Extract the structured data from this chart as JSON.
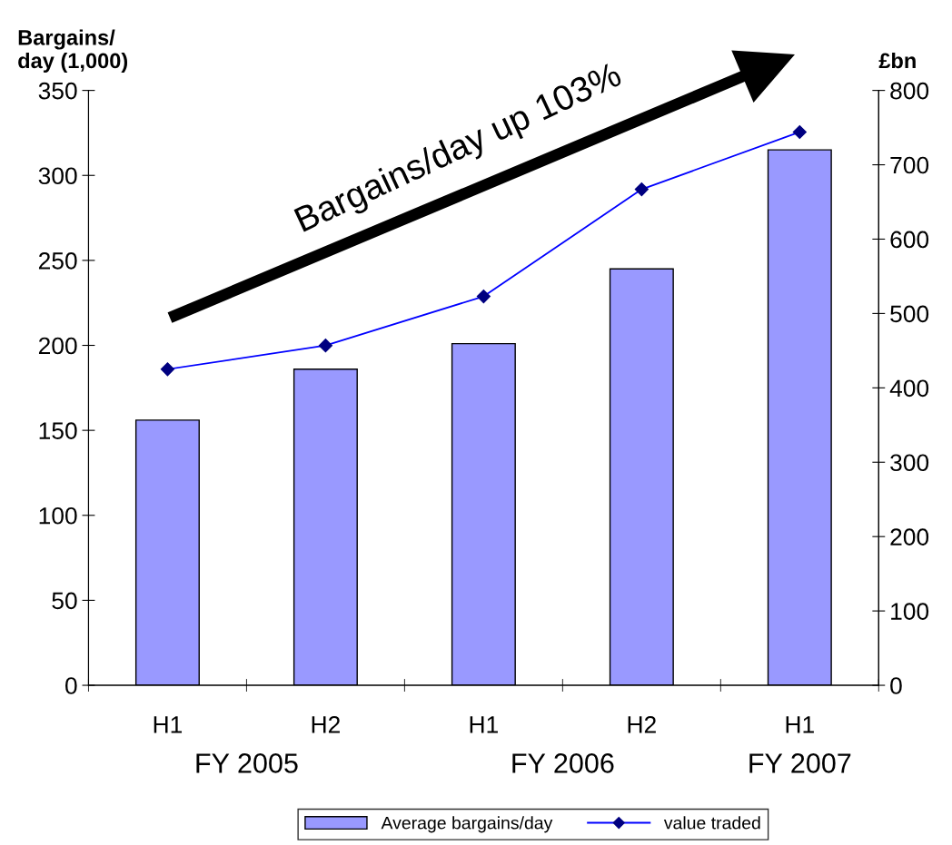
{
  "chart_data": {
    "type": "bar",
    "categories": [
      "H1",
      "H2",
      "H1",
      "H2",
      "H1"
    ],
    "series": [
      {
        "name": "Average bargains/day",
        "color": "#9999ff",
        "values": [
          156,
          186,
          201,
          245,
          315
        ]
      },
      {
        "name": "value traded",
        "type": "line",
        "axis": "y2",
        "color": "#0000ff",
        "marker": "diamond",
        "values": [
          425,
          457,
          523,
          667,
          744
        ]
      }
    ],
    "ylabel": "Bargains/\nday (1,000)",
    "y2label": "£bn",
    "ylim": [
      0,
      350
    ],
    "yticks": [
      0,
      50,
      100,
      150,
      200,
      250,
      300,
      350
    ],
    "y2lim": [
      0,
      800
    ],
    "y2ticks": [
      0,
      100,
      200,
      300,
      400,
      500,
      600,
      700,
      800
    ],
    "annotations": [
      "Bargains/day up 103%",
      "FY 2005",
      "FY 2006",
      "FY 2007"
    ],
    "legend": "bottom",
    "grid": false
  }
}
